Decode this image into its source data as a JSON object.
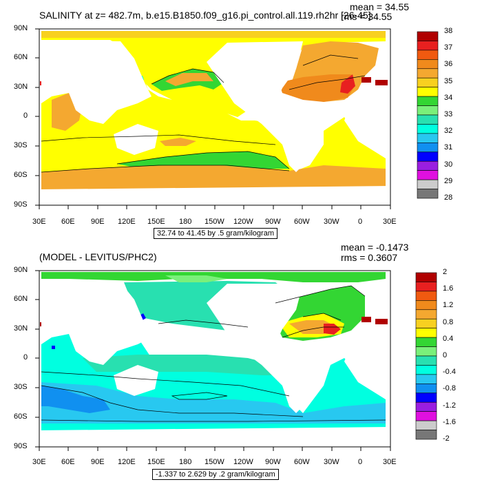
{
  "panels": [
    {
      "id": "top",
      "title": "SALINITY at z= 482.7m, b.e15.B1850.f09_g16.pi_control.all.119.rh2hr [26-45]",
      "mean_text": "mean = 34.55",
      "rms_text": "rms = 34.55",
      "range_text": "32.74 to 41.45 by .5 gram/kilogram",
      "lat_labels": [
        "90N",
        "60N",
        "30N",
        "0",
        "30S",
        "60S",
        "90S"
      ],
      "lon_labels": [
        "30E",
        "60E",
        "90E",
        "120E",
        "150E",
        "180",
        "150W",
        "120W",
        "90W",
        "60W",
        "30W",
        "0",
        "30E"
      ],
      "colorbar_labels": [
        "38",
        "37",
        "36",
        "35",
        "34",
        "33",
        "32",
        "31",
        "30",
        "29",
        "28"
      ],
      "colorbar_colors": [
        "#b00000",
        "#e82020",
        "#f05a10",
        "#f08a1c",
        "#f4a830",
        "#f8d020",
        "#ffff00",
        "#33d633",
        "#7af07a",
        "#28e0b0",
        "#00ffe0",
        "#28c8f0",
        "#1090f0",
        "#0000ff",
        "#9a1ee0",
        "#e010e0",
        "#cccccc",
        "#777777"
      ]
    },
    {
      "id": "bottom",
      "title": "(MODEL - LEVITUS/PHC2)",
      "mean_text": "mean = -0.1473",
      "rms_text": "rms = 0.3607",
      "range_text": "-1.337 to 2.629 by .2 gram/kilogram",
      "lat_labels": [
        "90N",
        "60N",
        "30N",
        "0",
        "30S",
        "60S",
        "90S"
      ],
      "lon_labels": [
        "30E",
        "60E",
        "90E",
        "120E",
        "150E",
        "180",
        "150W",
        "120W",
        "90W",
        "60W",
        "30W",
        "0",
        "30E"
      ],
      "colorbar_labels": [
        "2",
        "1.6",
        "1.2",
        "0.8",
        "0.4",
        "0",
        "-0.4",
        "-0.8",
        "-1.2",
        "-1.6",
        "-2"
      ],
      "colorbar_colors": [
        "#b00000",
        "#e82020",
        "#f05a10",
        "#f08a1c",
        "#f4a830",
        "#f8d020",
        "#ffff00",
        "#33d633",
        "#7af07a",
        "#28e0b0",
        "#00ffe0",
        "#28c8f0",
        "#1090f0",
        "#0000ff",
        "#9a1ee0",
        "#e010e0",
        "#cccccc",
        "#777777"
      ]
    }
  ]
}
